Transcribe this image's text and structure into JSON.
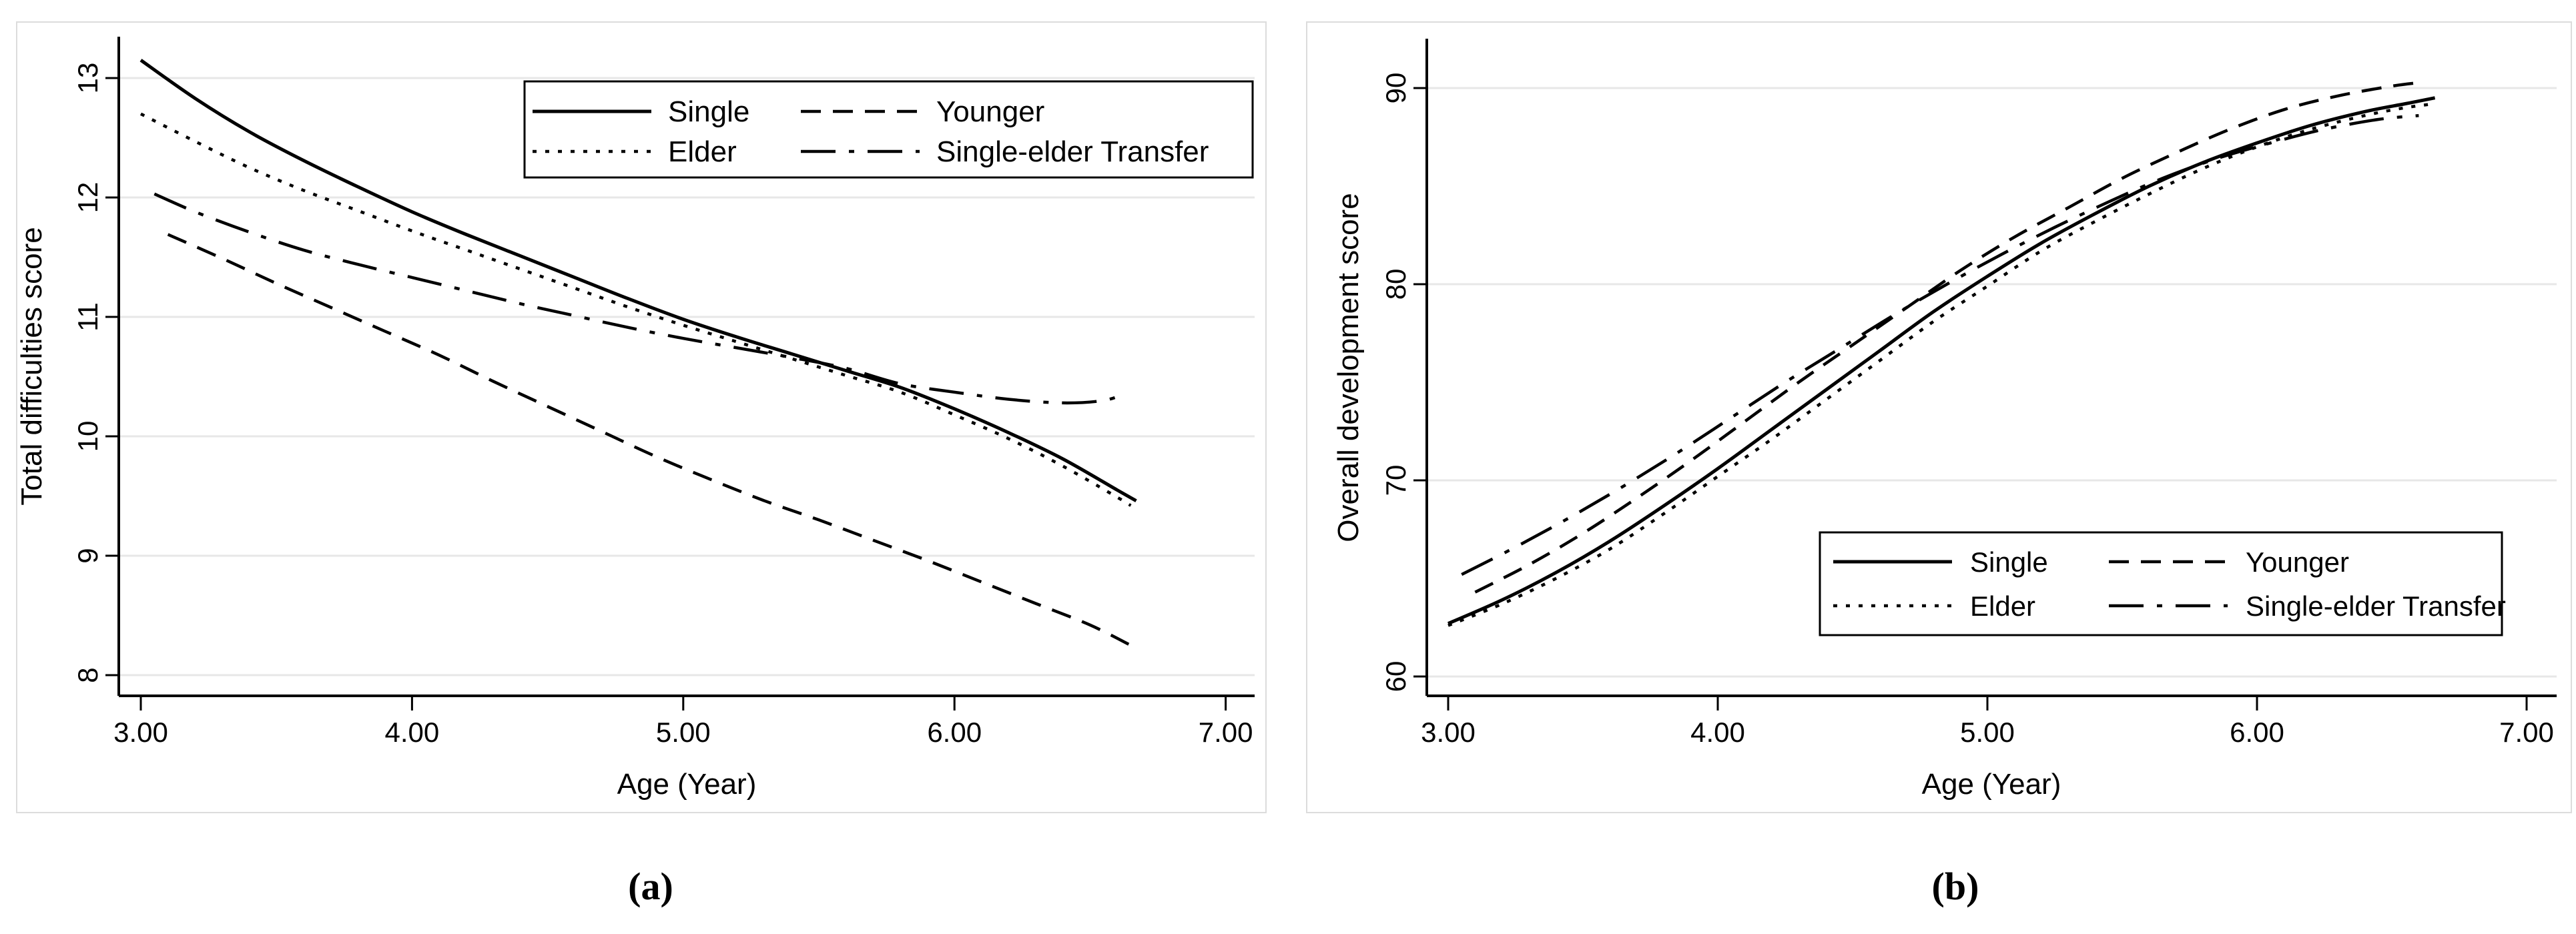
{
  "figure": {
    "background_color": "#ffffff",
    "line_color": "#000000",
    "grid_color": "#e7e7e7",
    "captions": {
      "a": "(a)",
      "b": "(b)"
    }
  },
  "chart_data": [
    {
      "type": "line",
      "title": "",
      "caption": "(a)",
      "xlabel": "Age (Year)",
      "ylabel": "Total difficulties score",
      "xlim": [
        3.0,
        7.0
      ],
      "ylim": [
        8,
        13.4
      ],
      "x_tick_values": [
        3,
        4,
        5,
        6,
        7
      ],
      "x_tick_labels": [
        "3.00",
        "4.00",
        "5.00",
        "6.00",
        "7.00"
      ],
      "y_tick_values": [
        8,
        9,
        10,
        11,
        12,
        13
      ],
      "y_tick_labels": [
        "8",
        "9",
        "10",
        "11",
        "12",
        "13"
      ],
      "grid": "horizontal",
      "legend_position": "top-right",
      "series": [
        {
          "name": "Single",
          "style": "solid",
          "x": [
            3.0,
            3.2,
            3.4,
            3.6,
            3.8,
            4.0,
            4.2,
            4.4,
            4.6,
            4.8,
            5.0,
            5.2,
            5.4,
            5.6,
            5.8,
            6.0,
            6.2,
            6.4,
            6.6,
            6.67
          ],
          "y": [
            13.15,
            12.83,
            12.55,
            12.31,
            12.09,
            11.88,
            11.69,
            11.51,
            11.33,
            11.15,
            10.98,
            10.83,
            10.69,
            10.55,
            10.41,
            10.23,
            10.03,
            9.81,
            9.55,
            9.46
          ]
        },
        {
          "name": "Younger",
          "style": "dashed",
          "x": [
            3.1,
            3.3,
            3.5,
            3.7,
            3.9,
            4.1,
            4.3,
            4.5,
            4.7,
            4.9,
            5.1,
            5.3,
            5.5,
            5.7,
            5.9,
            6.1,
            6.3,
            6.5,
            6.65
          ],
          "y": [
            11.69,
            11.49,
            11.28,
            11.08,
            10.88,
            10.68,
            10.46,
            10.25,
            10.04,
            9.83,
            9.64,
            9.46,
            9.3,
            9.13,
            8.96,
            8.78,
            8.6,
            8.42,
            8.25
          ]
        },
        {
          "name": "Elder",
          "style": "dotted",
          "x": [
            3.0,
            3.2,
            3.4,
            3.6,
            3.8,
            4.0,
            4.2,
            4.4,
            4.6,
            4.8,
            5.0,
            5.2,
            5.4,
            5.6,
            5.8,
            6.0,
            6.2,
            6.4,
            6.6,
            6.65
          ],
          "y": [
            12.7,
            12.47,
            12.25,
            12.06,
            11.89,
            11.72,
            11.56,
            11.4,
            11.24,
            11.08,
            10.93,
            10.79,
            10.65,
            10.51,
            10.37,
            10.18,
            9.98,
            9.75,
            9.49,
            9.42
          ]
        },
        {
          "name": "Single-elder Transfer",
          "style": "dashdot",
          "x": [
            3.05,
            3.2,
            3.4,
            3.6,
            3.8,
            4.0,
            4.2,
            4.4,
            4.6,
            4.8,
            5.0,
            5.2,
            5.4,
            5.6,
            5.8,
            6.0,
            6.2,
            6.4,
            6.55,
            6.63
          ],
          "y": [
            12.03,
            11.88,
            11.71,
            11.56,
            11.44,
            11.33,
            11.22,
            11.11,
            11.01,
            10.91,
            10.82,
            10.74,
            10.66,
            10.57,
            10.44,
            10.37,
            10.31,
            10.28,
            10.3,
            10.36
          ]
        }
      ]
    },
    {
      "type": "line",
      "title": "",
      "caption": "(b)",
      "xlabel": "Age (Year)",
      "ylabel": "Overall development score",
      "xlim": [
        3.0,
        7.0
      ],
      "ylim": [
        58,
        92
      ],
      "x_tick_values": [
        3,
        4,
        5,
        6,
        7
      ],
      "x_tick_labels": [
        "3.00",
        "4.00",
        "5.00",
        "6.00",
        "7.00"
      ],
      "y_tick_values": [
        60,
        70,
        80,
        90
      ],
      "y_tick_labels": [
        "60",
        "70",
        "80",
        "90"
      ],
      "grid": "horizontal",
      "legend_position": "middle-right",
      "series": [
        {
          "name": "Single",
          "style": "solid",
          "x": [
            3.0,
            3.2,
            3.4,
            3.6,
            3.8,
            4.0,
            4.2,
            4.4,
            4.6,
            4.8,
            5.0,
            5.2,
            5.4,
            5.6,
            5.8,
            6.0,
            6.2,
            6.4,
            6.55,
            6.66
          ],
          "y": [
            62.7,
            63.9,
            65.3,
            66.9,
            68.7,
            70.6,
            72.6,
            74.6,
            76.6,
            78.6,
            80.4,
            82.1,
            83.6,
            85.0,
            86.2,
            87.2,
            88.1,
            88.8,
            89.2,
            89.5
          ]
        },
        {
          "name": "Younger",
          "style": "dashed",
          "x": [
            3.1,
            3.3,
            3.5,
            3.7,
            3.9,
            4.1,
            4.3,
            4.5,
            4.7,
            4.9,
            5.1,
            5.3,
            5.5,
            5.7,
            5.9,
            6.1,
            6.3,
            6.5,
            6.62
          ],
          "y": [
            64.3,
            65.7,
            67.3,
            69.1,
            71.0,
            73.0,
            75.0,
            76.9,
            78.8,
            80.7,
            82.4,
            83.9,
            85.4,
            86.7,
            87.9,
            88.9,
            89.6,
            90.1,
            90.3
          ]
        },
        {
          "name": "Elder",
          "style": "dotted",
          "x": [
            3.0,
            3.2,
            3.4,
            3.6,
            3.8,
            4.0,
            4.2,
            4.4,
            4.6,
            4.8,
            5.0,
            5.2,
            5.4,
            5.6,
            5.8,
            6.0,
            6.2,
            6.4,
            6.55,
            6.66
          ],
          "y": [
            62.6,
            63.7,
            65.0,
            66.5,
            68.3,
            70.2,
            72.1,
            74.1,
            76.1,
            78.1,
            79.9,
            81.7,
            83.2,
            84.6,
            85.9,
            87.0,
            87.9,
            88.6,
            89.0,
            89.2
          ]
        },
        {
          "name": "Single-elder Transfer",
          "style": "dashdot",
          "x": [
            3.05,
            3.25,
            3.45,
            3.65,
            3.85,
            4.05,
            4.25,
            4.45,
            4.65,
            4.85,
            5.05,
            5.25,
            5.45,
            5.65,
            5.85,
            6.05,
            6.25,
            6.45,
            6.6
          ],
          "y": [
            65.2,
            66.6,
            68.1,
            69.7,
            71.4,
            73.2,
            75.0,
            76.7,
            78.4,
            80.0,
            81.5,
            82.9,
            84.2,
            85.4,
            86.4,
            87.2,
            87.9,
            88.4,
            88.6
          ]
        }
      ]
    }
  ]
}
